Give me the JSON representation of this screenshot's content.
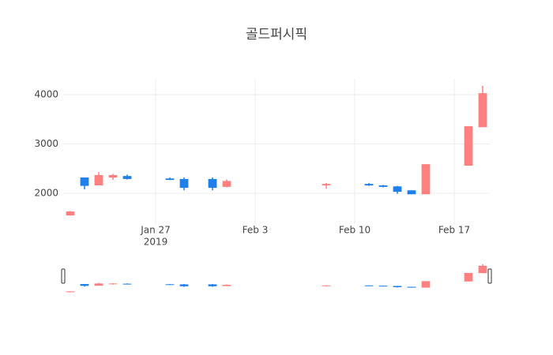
{
  "chart_data": {
    "type": "candlestick",
    "title": "골드퍼시픽",
    "x": [
      "2019-01-21",
      "2019-01-22",
      "2019-01-23",
      "2019-01-24",
      "2019-01-25",
      "2019-01-28",
      "2019-01-29",
      "2019-01-31",
      "2019-02-01",
      "2019-02-08",
      "2019-02-11",
      "2019-02-12",
      "2019-02-13",
      "2019-02-14",
      "2019-02-15",
      "2019-02-18",
      "2019-02-19"
    ],
    "open": [
      1550,
      2320,
      2160,
      2320,
      2350,
      2300,
      2290,
      2290,
      2130,
      2160,
      2190,
      2160,
      2140,
      2060,
      1980,
      2560,
      3340
    ],
    "high": [
      1640,
      2320,
      2430,
      2390,
      2380,
      2320,
      2320,
      2320,
      2280,
      2210,
      2210,
      2170,
      2150,
      2060,
      2590,
      3360,
      4180
    ],
    "low": [
      1550,
      2080,
      2160,
      2270,
      2280,
      2270,
      2060,
      2060,
      2120,
      2090,
      2150,
      2120,
      1990,
      1980,
      1980,
      2560,
      3340
    ],
    "close": [
      1630,
      2150,
      2370,
      2370,
      2290,
      2270,
      2110,
      2110,
      2250,
      2190,
      2160,
      2130,
      2030,
      1980,
      2590,
      3360,
      4030
    ],
    "increasing_color": "#ff8080",
    "decreasing_color": "#1f80ec",
    "xlim": [
      "2019-01-20T12:00:00Z",
      "2019-02-19T12:00:00Z"
    ],
    "xticks": [
      {
        "value": "2019-01-27",
        "label": "Jan 27",
        "year": "2019"
      },
      {
        "value": "2019-02-03",
        "label": "Feb 3"
      },
      {
        "value": "2019-02-10",
        "label": "Feb 10"
      },
      {
        "value": "2019-02-17",
        "label": "Feb 17"
      }
    ],
    "ylim": [
      1360,
      4320
    ],
    "yticks": [
      2000,
      3000,
      4000
    ],
    "grid": true,
    "rangeslider": true
  }
}
